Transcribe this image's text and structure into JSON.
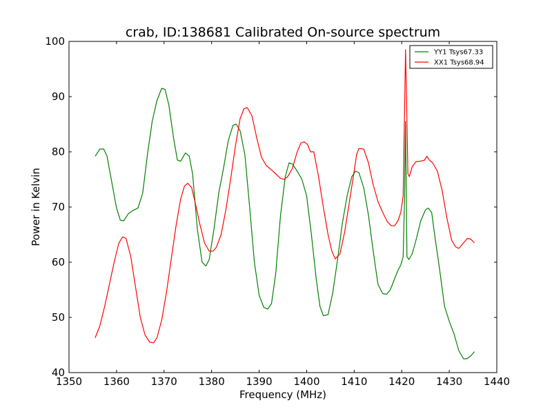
{
  "chart_data": {
    "type": "line",
    "title": "crab, ID:138681 Calibrated On-source spectrum",
    "xlabel": "Frequency (MHz)",
    "ylabel": "Power in Kelvin",
    "xlim": [
      1350,
      1440
    ],
    "ylim": [
      40,
      100
    ],
    "xticks": [
      1350,
      1360,
      1370,
      1380,
      1390,
      1400,
      1410,
      1420,
      1430,
      1440
    ],
    "yticks": [
      40,
      50,
      60,
      70,
      80,
      90,
      100
    ],
    "grid": false,
    "legend_position": "top-right",
    "series": [
      {
        "name": "YY1 Tsys67.33",
        "color": "#008000",
        "x": [
          1355.5,
          1356.5,
          1357.3,
          1358,
          1359,
          1360,
          1360.8,
          1361.5,
          1362.5,
          1363.5,
          1364.5,
          1365.5,
          1366.5,
          1367.5,
          1368.5,
          1369.5,
          1370.2,
          1371,
          1372,
          1372.8,
          1373.5,
          1374.5,
          1375.3,
          1376,
          1377,
          1378,
          1378.8,
          1379.5,
          1380.5,
          1381.5,
          1382.5,
          1383.5,
          1384.5,
          1385.2,
          1386,
          1387,
          1388,
          1389,
          1390,
          1391,
          1391.8,
          1392.6,
          1393.5,
          1394.5,
          1395.5,
          1396.3,
          1397,
          1398,
          1399,
          1400,
          1401,
          1402,
          1402.8,
          1403.5,
          1404.5,
          1405.5,
          1406.5,
          1407.5,
          1408.5,
          1409.5,
          1410.3,
          1411,
          1412,
          1413,
          1414,
          1415,
          1416,
          1416.8,
          1417.6,
          1418.5,
          1419.2,
          1419.8,
          1420.3,
          1420.6,
          1420.8,
          1421.1,
          1421.5,
          1422.2,
          1423,
          1424,
          1425,
          1425.6,
          1426.3,
          1427,
          1428,
          1429,
          1430,
          1431,
          1432,
          1433,
          1433.7,
          1434.5,
          1435.3
        ],
        "y": [
          79.2,
          80.5,
          80.5,
          79.2,
          74.5,
          69.8,
          67.6,
          67.5,
          68.8,
          69.4,
          69.8,
          72.5,
          79.5,
          85.5,
          89.3,
          91.5,
          91.3,
          88.5,
          82.5,
          78.5,
          78.3,
          79.8,
          79.2,
          76,
          66,
          60,
          59.3,
          60.5,
          66,
          72.5,
          77,
          82,
          84.8,
          85,
          83.8,
          79.5,
          70,
          60,
          54,
          51.8,
          51.5,
          52.5,
          58,
          68.5,
          75.5,
          78,
          77.8,
          76.5,
          75,
          72,
          65,
          57,
          52,
          50.3,
          50.5,
          54.5,
          60.5,
          67,
          72,
          75.5,
          76.5,
          76.2,
          73.5,
          68.5,
          62,
          56,
          54.3,
          54.2,
          55,
          57,
          58.5,
          59.5,
          61,
          72,
          85.5,
          61,
          60.5,
          61.5,
          64,
          67.5,
          69.5,
          69.8,
          69,
          64.5,
          58.5,
          52,
          49.3,
          47,
          44,
          42.5,
          42.5,
          43,
          43.8
        ]
      },
      {
        "name": "XX1 Tsys68.94",
        "color": "#ff0000",
        "x": [
          1355.5,
          1356.5,
          1357.5,
          1358.5,
          1359.5,
          1360.5,
          1361.3,
          1362,
          1363,
          1364,
          1365,
          1366,
          1367,
          1367.8,
          1368.5,
          1369.5,
          1370.5,
          1371.5,
          1372.5,
          1373.5,
          1374.3,
          1375,
          1375.8,
          1376.5,
          1377.5,
          1378.5,
          1379.5,
          1380.3,
          1381,
          1382,
          1383,
          1384,
          1385,
          1386,
          1386.8,
          1387.5,
          1388.5,
          1389.5,
          1390.5,
          1391.5,
          1392.5,
          1393.5,
          1394.5,
          1395.3,
          1396,
          1397,
          1398,
          1398.8,
          1399.5,
          1400.2,
          1400.8,
          1401.5,
          1402.5,
          1403.5,
          1404.5,
          1405.3,
          1406,
          1407,
          1408,
          1409,
          1410,
          1410.5,
          1411,
          1412,
          1413,
          1414,
          1415,
          1416,
          1417,
          1417.8,
          1418.5,
          1419.2,
          1419.8,
          1420.3,
          1420.6,
          1420.8,
          1421,
          1421.3,
          1421.6,
          1422.2,
          1423,
          1424,
          1424.8,
          1425.3,
          1425.8,
          1426.5,
          1427.5,
          1428.5,
          1429.5,
          1430.5,
          1431.3,
          1432,
          1433,
          1433.8,
          1434.5,
          1435.3
        ],
        "y": [
          46.3,
          48.5,
          52,
          56,
          60,
          63.5,
          64.6,
          64.3,
          61,
          55.5,
          50,
          46.8,
          45.5,
          45.4,
          46.3,
          49.5,
          54.5,
          60.5,
          66.5,
          71.5,
          73.8,
          74.3,
          73.5,
          71,
          67,
          63.5,
          62,
          62,
          62.7,
          65,
          69.5,
          75,
          81,
          86,
          87.8,
          88,
          86.5,
          82.5,
          79,
          77.5,
          76.8,
          76,
          75.2,
          75,
          75.5,
          77,
          80,
          81.6,
          81.8,
          81.3,
          80,
          80,
          75.5,
          70,
          65,
          62,
          60.6,
          61.5,
          65.5,
          71,
          76.5,
          79.5,
          80.6,
          80.5,
          78,
          74,
          71,
          69,
          67.3,
          66.6,
          66.6,
          67.5,
          69,
          72,
          88,
          98.5,
          90,
          76,
          75.5,
          77.3,
          78.2,
          78.3,
          78.5,
          79.2,
          78.5,
          78,
          76.5,
          73,
          68,
          64,
          62.8,
          62.5,
          63.5,
          64.3,
          64.2,
          63.5
        ]
      }
    ]
  }
}
